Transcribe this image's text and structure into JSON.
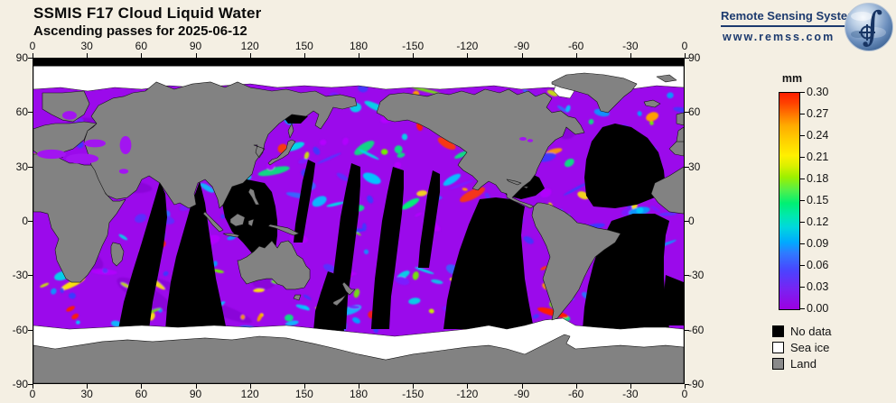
{
  "page": {
    "background": "#f4efe3"
  },
  "header": {
    "title": "SSMIS F17 Cloud Liquid Water",
    "subtitle": "Ascending passes for 2025-06-12"
  },
  "logo": {
    "name": "Remote Sensing Systems",
    "url": "www.remss.com",
    "color": "#1c3a6e",
    "globe_icon": "earth-with-integral-and-crosshair"
  },
  "axes": {
    "lon_ticks": [
      "0",
      "30",
      "60",
      "90",
      "120",
      "150",
      "180",
      "-150",
      "-120",
      "-90",
      "-60",
      "-30",
      "0"
    ],
    "lat_ticks": [
      "90",
      "60",
      "30",
      "0",
      "-30",
      "-60",
      "-90"
    ]
  },
  "colorbar": {
    "unit": "mm",
    "tick_labels": [
      "0.30",
      "0.27",
      "0.24",
      "0.21",
      "0.18",
      "0.15",
      "0.12",
      "0.09",
      "0.06",
      "0.03",
      "0.00"
    ]
  },
  "legend": {
    "items": [
      {
        "label": "No data",
        "color": "#000000"
      },
      {
        "label": "Sea ice",
        "color": "#ffffff"
      },
      {
        "label": "Land",
        "color": "#8a8a8a"
      }
    ]
  },
  "chart_data": {
    "type": "heatmap",
    "title": "SSMIS F17 Cloud Liquid Water",
    "subtitle": "Ascending passes for 2025-06-12",
    "unit": "mm",
    "projection": "equirectangular world map, longitude 0 to 360 (map centered on 180), latitude -90 to 90",
    "x_axis": {
      "ticks": [
        0,
        30,
        60,
        90,
        120,
        150,
        180,
        -150,
        -120,
        -90,
        -60,
        -30,
        0
      ],
      "range_deg": [
        0,
        360
      ]
    },
    "y_axis": {
      "ticks": [
        90,
        60,
        30,
        0,
        -30,
        -60,
        -90
      ],
      "range_deg": [
        -90,
        90
      ]
    },
    "colorbar": {
      "min": 0.0,
      "max": 0.3,
      "step": 0.03,
      "ticks": [
        0.0,
        0.03,
        0.06,
        0.09,
        0.12,
        0.15,
        0.18,
        0.21,
        0.24,
        0.27,
        0.3
      ],
      "colors_low_to_high": [
        "#9b00e0",
        "#6a33ff",
        "#3355ff",
        "#00aaff",
        "#00e2d2",
        "#00f073",
        "#9cf000",
        "#fff000",
        "#ffbb00",
        "#ff7700",
        "#ff2200"
      ]
    },
    "classes": [
      "No data",
      "Sea ice",
      "Land"
    ],
    "notes": "Ocean cloud liquid water values are mostly low (violet ~0-0.03 mm) with cyan/green/yellow/red storm streaks in the N Pacific, N Atlantic and Southern Ocean; black curved swath gaps between ascending orbit passes; white sea ice at both poles; black no-data bar at 90N"
  }
}
